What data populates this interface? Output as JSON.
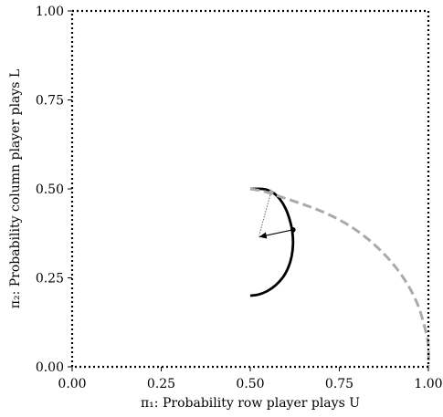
{
  "chart_data": {
    "type": "line",
    "xlabel": "π₁: Probability row player plays U",
    "ylabel": "π₂: Probability column player plays L",
    "xlim": [
      0,
      1
    ],
    "ylim": [
      0,
      1
    ],
    "grid": false,
    "frame_style": "dotted",
    "x_ticks": [
      {
        "value": 0,
        "label": "0.00"
      },
      {
        "value": 0.25,
        "label": "0.25"
      },
      {
        "value": 0.5,
        "label": "0.50"
      },
      {
        "value": 0.75,
        "label": "0.75"
      },
      {
        "value": 1,
        "label": "1.00"
      }
    ],
    "y_ticks": [
      {
        "value": 0,
        "label": "0.00"
      },
      {
        "value": 0.25,
        "label": "0.25"
      },
      {
        "value": 0.5,
        "label": "0.50"
      },
      {
        "value": 0.75,
        "label": "0.75"
      },
      {
        "value": 1,
        "label": "1.00"
      }
    ],
    "series": [
      {
        "style": "solid",
        "color": "#000000",
        "points": [
          [
            0.5,
            0.2
          ],
          [
            0.523,
            0.203
          ],
          [
            0.548,
            0.213
          ],
          [
            0.572,
            0.23
          ],
          [
            0.592,
            0.252
          ],
          [
            0.607,
            0.28
          ],
          [
            0.616,
            0.31
          ],
          [
            0.62,
            0.345
          ],
          [
            0.618,
            0.38
          ],
          [
            0.611,
            0.412
          ],
          [
            0.6,
            0.443
          ],
          [
            0.584,
            0.47
          ],
          [
            0.566,
            0.488
          ],
          [
            0.548,
            0.497
          ],
          [
            0.53,
            0.5
          ],
          [
            0.5,
            0.5
          ]
        ]
      },
      {
        "style": "dashed",
        "color": "#aaaaaa",
        "points": [
          [
            0.5,
            0.5
          ],
          [
            0.53,
            0.495
          ],
          [
            0.555,
            0.488
          ],
          [
            0.6,
            0.473
          ],
          [
            0.65,
            0.456
          ],
          [
            0.7,
            0.437
          ],
          [
            0.75,
            0.413
          ],
          [
            0.8,
            0.382
          ],
          [
            0.85,
            0.342
          ],
          [
            0.9,
            0.29
          ],
          [
            0.94,
            0.234
          ],
          [
            0.97,
            0.175
          ],
          [
            0.99,
            0.11
          ],
          [
            1.0,
            0.06
          ],
          [
            1.0,
            0.0
          ]
        ]
      }
    ],
    "markers": [
      {
        "x": 0.62,
        "y": 0.385,
        "shape": "dot",
        "color": "#000000"
      },
      {
        "x": 0.558,
        "y": 0.49,
        "shape": "diamond",
        "color": "#aaaaaa"
      }
    ],
    "arrows": [
      {
        "from": [
          0.62,
          0.385
        ],
        "to": [
          0.525,
          0.365
        ],
        "style": "solid",
        "color": "#000000"
      },
      {
        "from": [
          0.558,
          0.49
        ],
        "to": [
          0.525,
          0.37
        ],
        "style": "dotted",
        "color": "#555555"
      }
    ]
  }
}
